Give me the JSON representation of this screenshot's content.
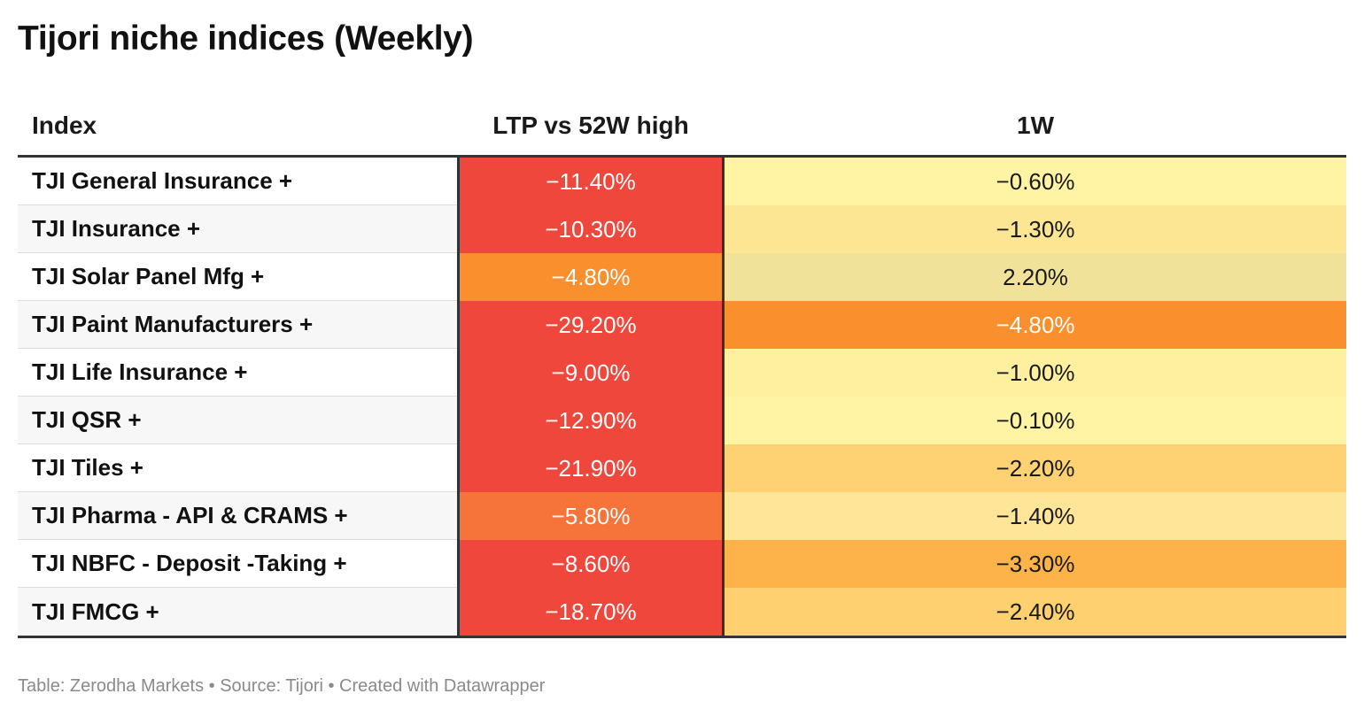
{
  "title": "Tijori niche indices (Weekly)",
  "footer": "Table: Zerodha Markets • Source: Tijori • Created with Datawrapper",
  "chart_data": {
    "type": "table",
    "columns": [
      "Index",
      "LTP vs 52W high",
      "1W"
    ],
    "rows": [
      {
        "index": "TJI General Insurance +",
        "ltp_vs_52w": "−11.40%",
        "w1": "−0.60%",
        "ltp_color": "#ef473b",
        "w1_color": "#fff4a3"
      },
      {
        "index": "TJI Insurance +",
        "ltp_vs_52w": "−10.30%",
        "w1": "−1.30%",
        "ltp_color": "#ef473b",
        "w1_color": "#fde693"
      },
      {
        "index": "TJI Solar Panel Mfg +",
        "ltp_vs_52w": "−4.80%",
        "w1": "2.20%",
        "ltp_color": "#f98f2d",
        "w1_color": "#f1e29a"
      },
      {
        "index": "TJI Paint Manufacturers +",
        "ltp_vs_52w": "−29.20%",
        "w1": "−4.80%",
        "ltp_color": "#ef473b",
        "w1_color": "#f98f2d"
      },
      {
        "index": "TJI Life Insurance +",
        "ltp_vs_52w": "−9.00%",
        "w1": "−1.00%",
        "ltp_color": "#ef473b",
        "w1_color": "#fff09f"
      },
      {
        "index": "TJI QSR +",
        "ltp_vs_52w": "−12.90%",
        "w1": "−0.10%",
        "ltp_color": "#ef473b",
        "w1_color": "#fff4a3"
      },
      {
        "index": "TJI Tiles +",
        "ltp_vs_52w": "−21.90%",
        "w1": "−2.20%",
        "ltp_color": "#ef473b",
        "w1_color": "#fed172"
      },
      {
        "index": "TJI Pharma - API & CRAMS +",
        "ltp_vs_52w": "−5.80%",
        "w1": "−1.40%",
        "ltp_color": "#f6733a",
        "w1_color": "#fee597"
      },
      {
        "index": "TJI NBFC - Deposit -Taking +",
        "ltp_vs_52w": "−8.60%",
        "w1": "−3.30%",
        "ltp_color": "#ef473b",
        "w1_color": "#fdb24a"
      },
      {
        "index": "TJI FMCG +",
        "ltp_vs_52w": "−18.70%",
        "w1": "−2.40%",
        "ltp_color": "#ef473b",
        "w1_color": "#fed070"
      }
    ]
  }
}
